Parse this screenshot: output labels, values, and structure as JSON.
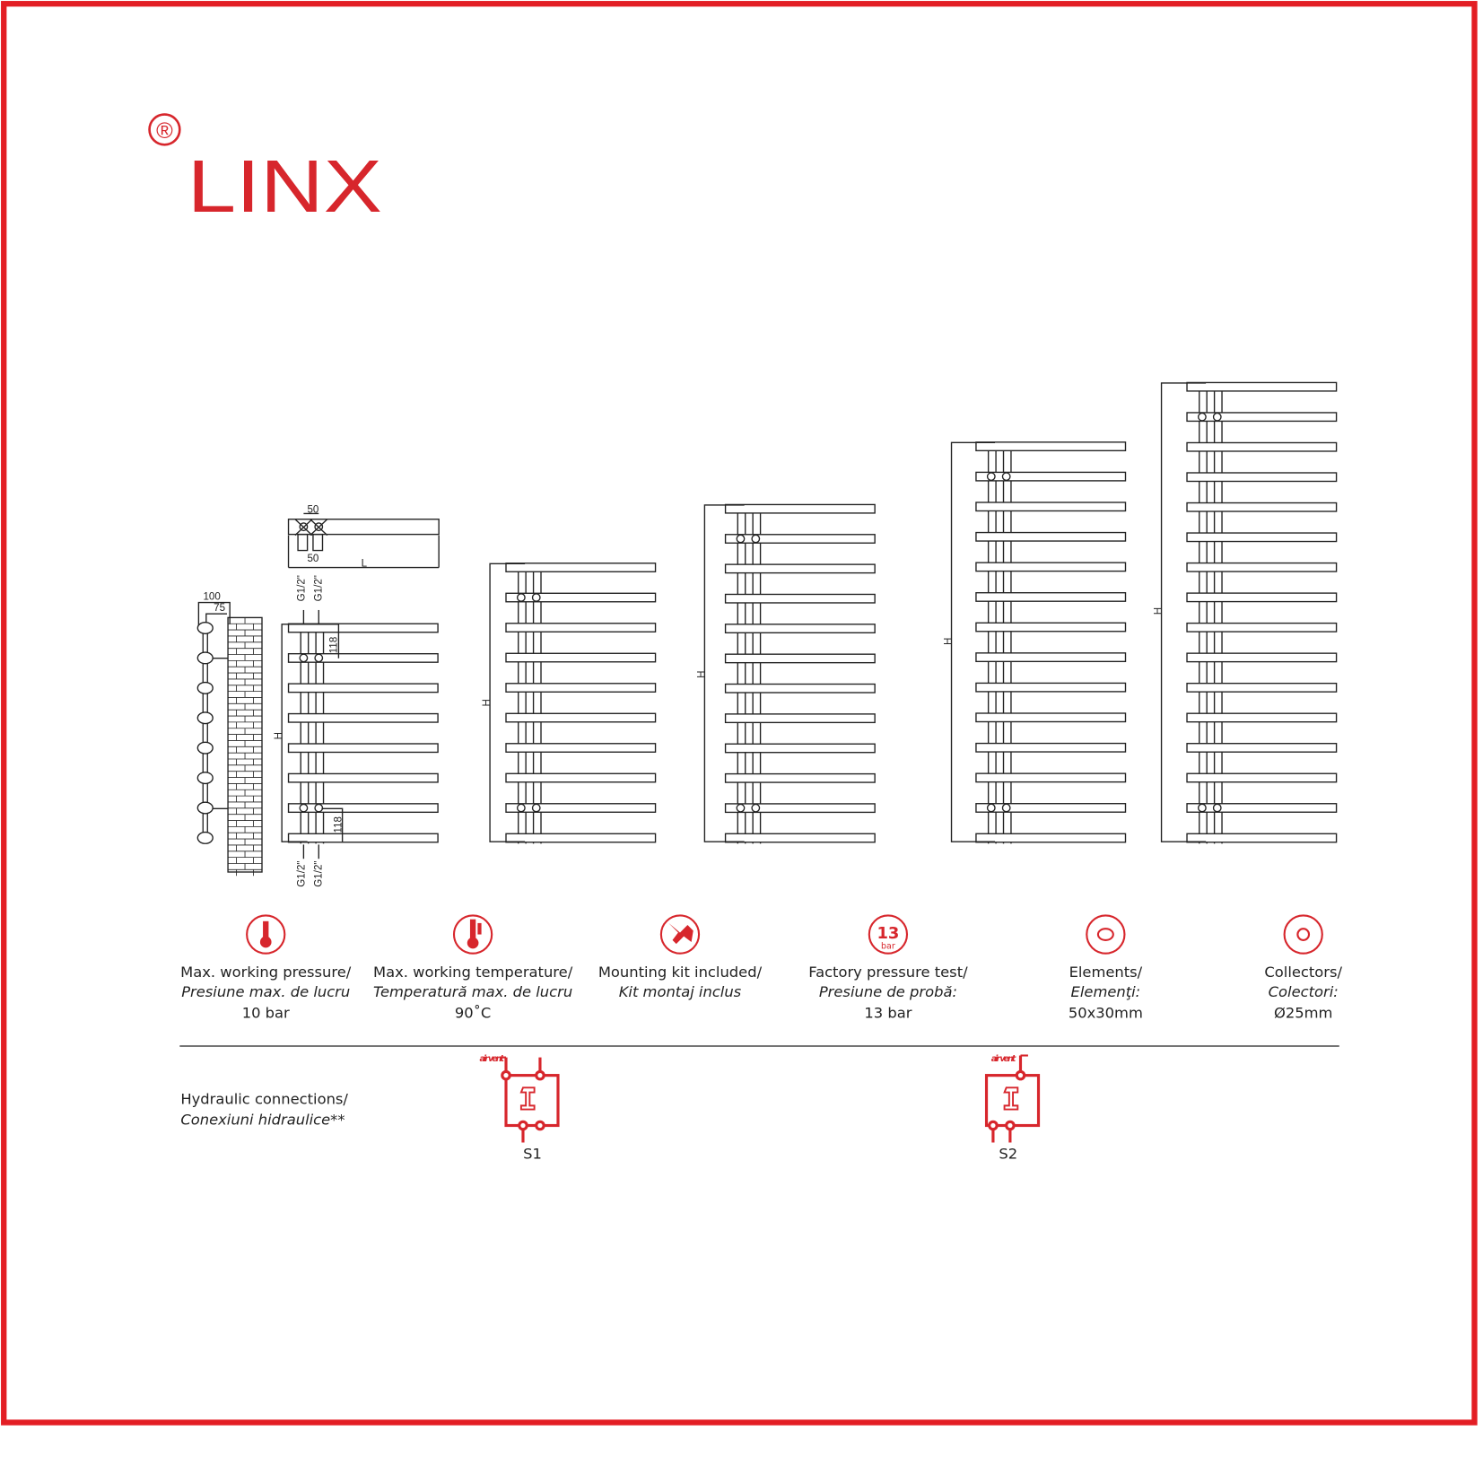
{
  "brand": {
    "name": "LINX",
    "registered_mark": "®",
    "color": "#d7262c"
  },
  "border_color": "#e31e24",
  "drawing": {
    "dims": {
      "d100": "100",
      "d75": "75",
      "d50_top": "50",
      "d50_bottom": "50",
      "length": "L",
      "height": "H",
      "d118_top": "118",
      "d118_bottom": "118",
      "g_top_1": "G1/2\"",
      "g_top_2": "G1/2\"",
      "g_bot_1": "G1/2\"",
      "g_bot_2": "G1/2\""
    },
    "radiator_bar_counts": [
      8,
      10,
      12,
      14,
      16
    ]
  },
  "specs": [
    {
      "icon": "pressure-gauge-icon",
      "line1": "Max. working pressure/",
      "line2": "Presiune max. de lucru",
      "line3": "10 bar"
    },
    {
      "icon": "thermometer-icon",
      "line1": "Max. working temperature/",
      "line2": "Temperatură max. de lucru",
      "line3": "90˚C"
    },
    {
      "icon": "tools-icon",
      "line1": "Mounting kit included/",
      "line2": "Kit montaj inclus",
      "line3": ""
    },
    {
      "icon": "pressure-test-icon",
      "icon_text": "13",
      "icon_sub": "bar",
      "line1": "Factory pressure test/",
      "line2": "Presiune de probă:",
      "line3": "13 bar"
    },
    {
      "icon": "oval-element-icon",
      "line1": "Elements/",
      "line2": "Elemenţi:",
      "line3": "50x30mm"
    },
    {
      "icon": "round-collector-icon",
      "line1": "Collectors/",
      "line2": "Colectori:",
      "line3": "Ø25mm"
    }
  ],
  "hydraulic": {
    "title": "Hydraulic connections/",
    "subtitle": "Conexiuni hidraulice**",
    "schemes": [
      {
        "label": "S1",
        "air_vent": "air vent"
      },
      {
        "label": "S2",
        "air_vent": "air vent"
      }
    ]
  }
}
